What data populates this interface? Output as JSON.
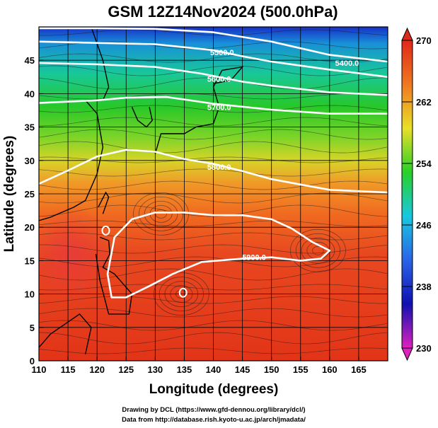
{
  "title": "GSM 12Z14Nov2024 (500.0hPa)",
  "xlabel": "Longitude (degrees)",
  "ylabel": "Latitude  (degrees)",
  "credits": [
    "Drawing by DCL (https://www.gfd-dennou.org/library/dcl/)",
    "Data from http://database.rish.kyoto-u.ac.jp/arch/jmadata/"
  ],
  "chart_data": {
    "type": "heatmap",
    "title": "GSM 12Z14Nov2024 (500.0hPa)",
    "xlabel": "Longitude (degrees)",
    "ylabel": "Latitude  (degrees)",
    "xlim": [
      110,
      170
    ],
    "ylim": [
      0,
      50
    ],
    "x_ticks": [
      110,
      115,
      120,
      125,
      130,
      135,
      140,
      145,
      150,
      155,
      160,
      165
    ],
    "y_ticks": [
      0,
      5,
      10,
      15,
      20,
      25,
      30,
      35,
      40,
      45
    ],
    "grid": true,
    "colorbar": {
      "range": [
        230,
        270
      ],
      "ticks": [
        230,
        238,
        246,
        254,
        262,
        270
      ],
      "colors": [
        "#e020c0",
        "#1010b0",
        "#2a64e8",
        "#18c8e0",
        "#28d028",
        "#e8e028",
        "#f07820",
        "#e02818"
      ]
    },
    "contours": [
      {
        "label": "5400.0",
        "lon": [
          110,
          120,
          130,
          140,
          150,
          160,
          170
        ],
        "lat": [
          49.8,
          49.8,
          49.7,
          49.2,
          47.8,
          45.8,
          44.8
        ],
        "label_lon": 163,
        "label_lat": 44.6
      },
      {
        "label": "5500.0",
        "lon": [
          110,
          120,
          130,
          140,
          145,
          150,
          160,
          170
        ],
        "lat": [
          47.8,
          47.6,
          47.4,
          46.5,
          45.6,
          44.8,
          43.6,
          42.5
        ],
        "label_lon": 141.5,
        "label_lat": 46.2
      },
      {
        "label": "5600.0",
        "lon": [
          110,
          120,
          130,
          138,
          145,
          150,
          160,
          170
        ],
        "lat": [
          44.6,
          44.4,
          44.0,
          43.0,
          41.8,
          41.2,
          40.2,
          39.8
        ],
        "label_lon": 141,
        "label_lat": 42.2
      },
      {
        "label": "5700.0",
        "lon": [
          110,
          120,
          125,
          132,
          140,
          150,
          160,
          170
        ],
        "lat": [
          38.6,
          39.0,
          39.4,
          39.5,
          38.5,
          37.6,
          37.0,
          37.0
        ],
        "label_lon": 141,
        "label_lat": 38.0
      },
      {
        "label": "5800.0",
        "lon": [
          110,
          115,
          120,
          125,
          130,
          135,
          140,
          145,
          150,
          155,
          160,
          170
        ],
        "lat": [
          26.5,
          28.5,
          30.6,
          31.6,
          31.3,
          30.2,
          29.5,
          28.4,
          27.2,
          26.4,
          25.6,
          25.2
        ],
        "label_lon": 141,
        "label_lat": 29.0
      },
      {
        "label": "5900.0",
        "lon": [
          122.5,
          121.8,
          123.0,
          126.0,
          130.0,
          135.0,
          140.0,
          145.0,
          150.0,
          153.5,
          157.0,
          160.0,
          158.5,
          155.0,
          150.0,
          145.0,
          138.0,
          133.0,
          129.0,
          125.0
        ],
        "lat": [
          9.5,
          13.0,
          18.5,
          21.2,
          22.2,
          22.2,
          21.8,
          21.8,
          21.2,
          19.8,
          17.8,
          16.5,
          15.3,
          15.0,
          15.5,
          15.3,
          14.8,
          13.0,
          11.2,
          9.5
        ],
        "label_lon": 147,
        "label_lat": 15.5
      }
    ],
    "closed_contours": [
      {
        "lon": 121.5,
        "lat": 19.5,
        "label": ""
      },
      {
        "lon": 134.8,
        "lat": 10.2,
        "label": ""
      }
    ]
  }
}
